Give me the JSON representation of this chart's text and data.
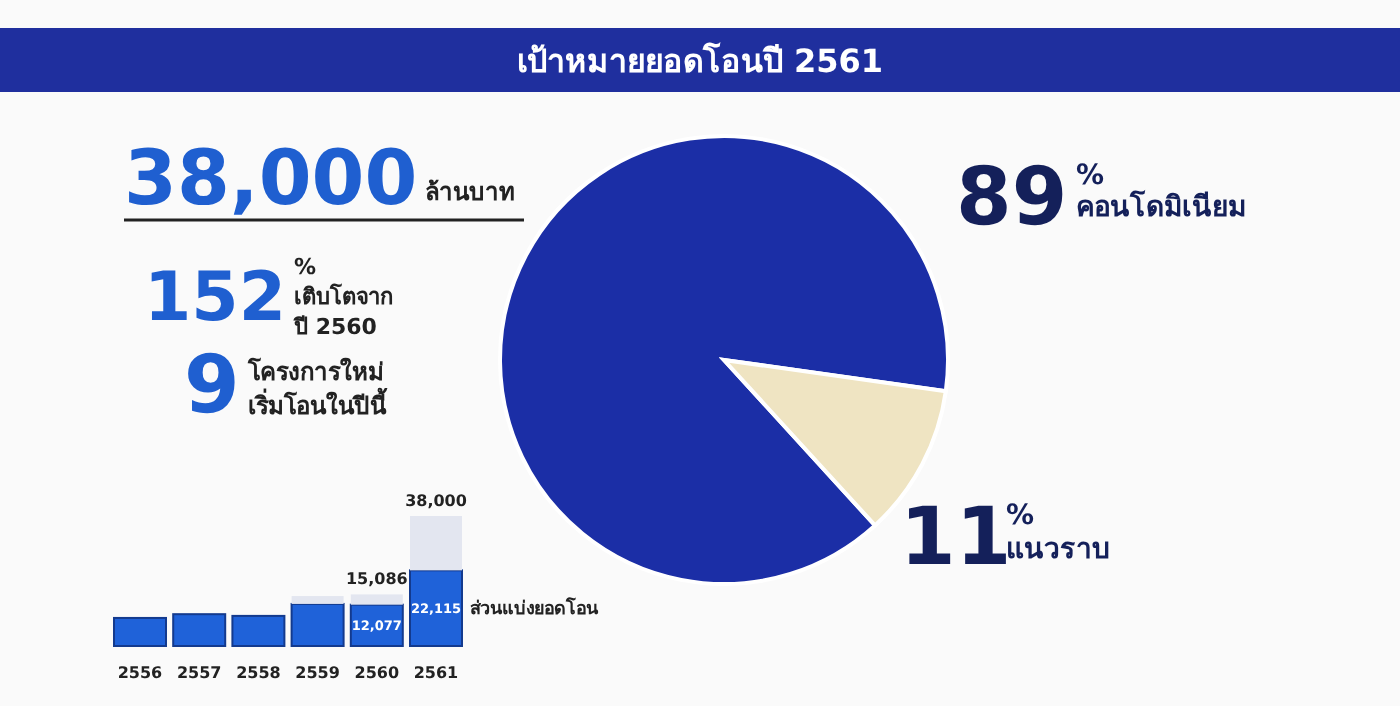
{
  "chart_data": [
    {
      "type": "other",
      "title": "เป้าหมายยอดโอนปี 2561",
      "annotations": [
        "38,000",
        "ล้านบาท",
        "152",
        "%",
        "เติบโตจาก",
        "ปี 2560",
        "9",
        "โครงการใหม่",
        "เริ่มโอนในปีนี้"
      ]
    },
    {
      "type": "pie",
      "categories": [
        "คอนโดมิเนียม",
        "แนวราบ"
      ],
      "values": [
        89,
        11
      ],
      "colors": [
        "#1b2ea6",
        "#efe4c2"
      ],
      "value_labels": [
        "89%",
        "11%"
      ],
      "data_labels": true
    },
    {
      "type": "bar",
      "stacked": true,
      "categories": [
        "2556",
        "2557",
        "2558",
        "2559",
        "2560",
        "2561"
      ],
      "series": [
        {
          "name": "ส่วนแบ่งยอดโอน",
          "color": "#1f62d9",
          "values": [
            8200,
            9300,
            8800,
            12300,
            12077,
            22115
          ],
          "value_labels": [
            null,
            null,
            null,
            null,
            "12,077",
            "22,115"
          ]
        },
        {
          "color": "#e3e6f0",
          "values": [
            null,
            null,
            null,
            2300,
            3009,
            15885
          ]
        }
      ],
      "totals": [
        null,
        null,
        null,
        null,
        "15,086",
        "38,000"
      ]
    }
  ]
}
